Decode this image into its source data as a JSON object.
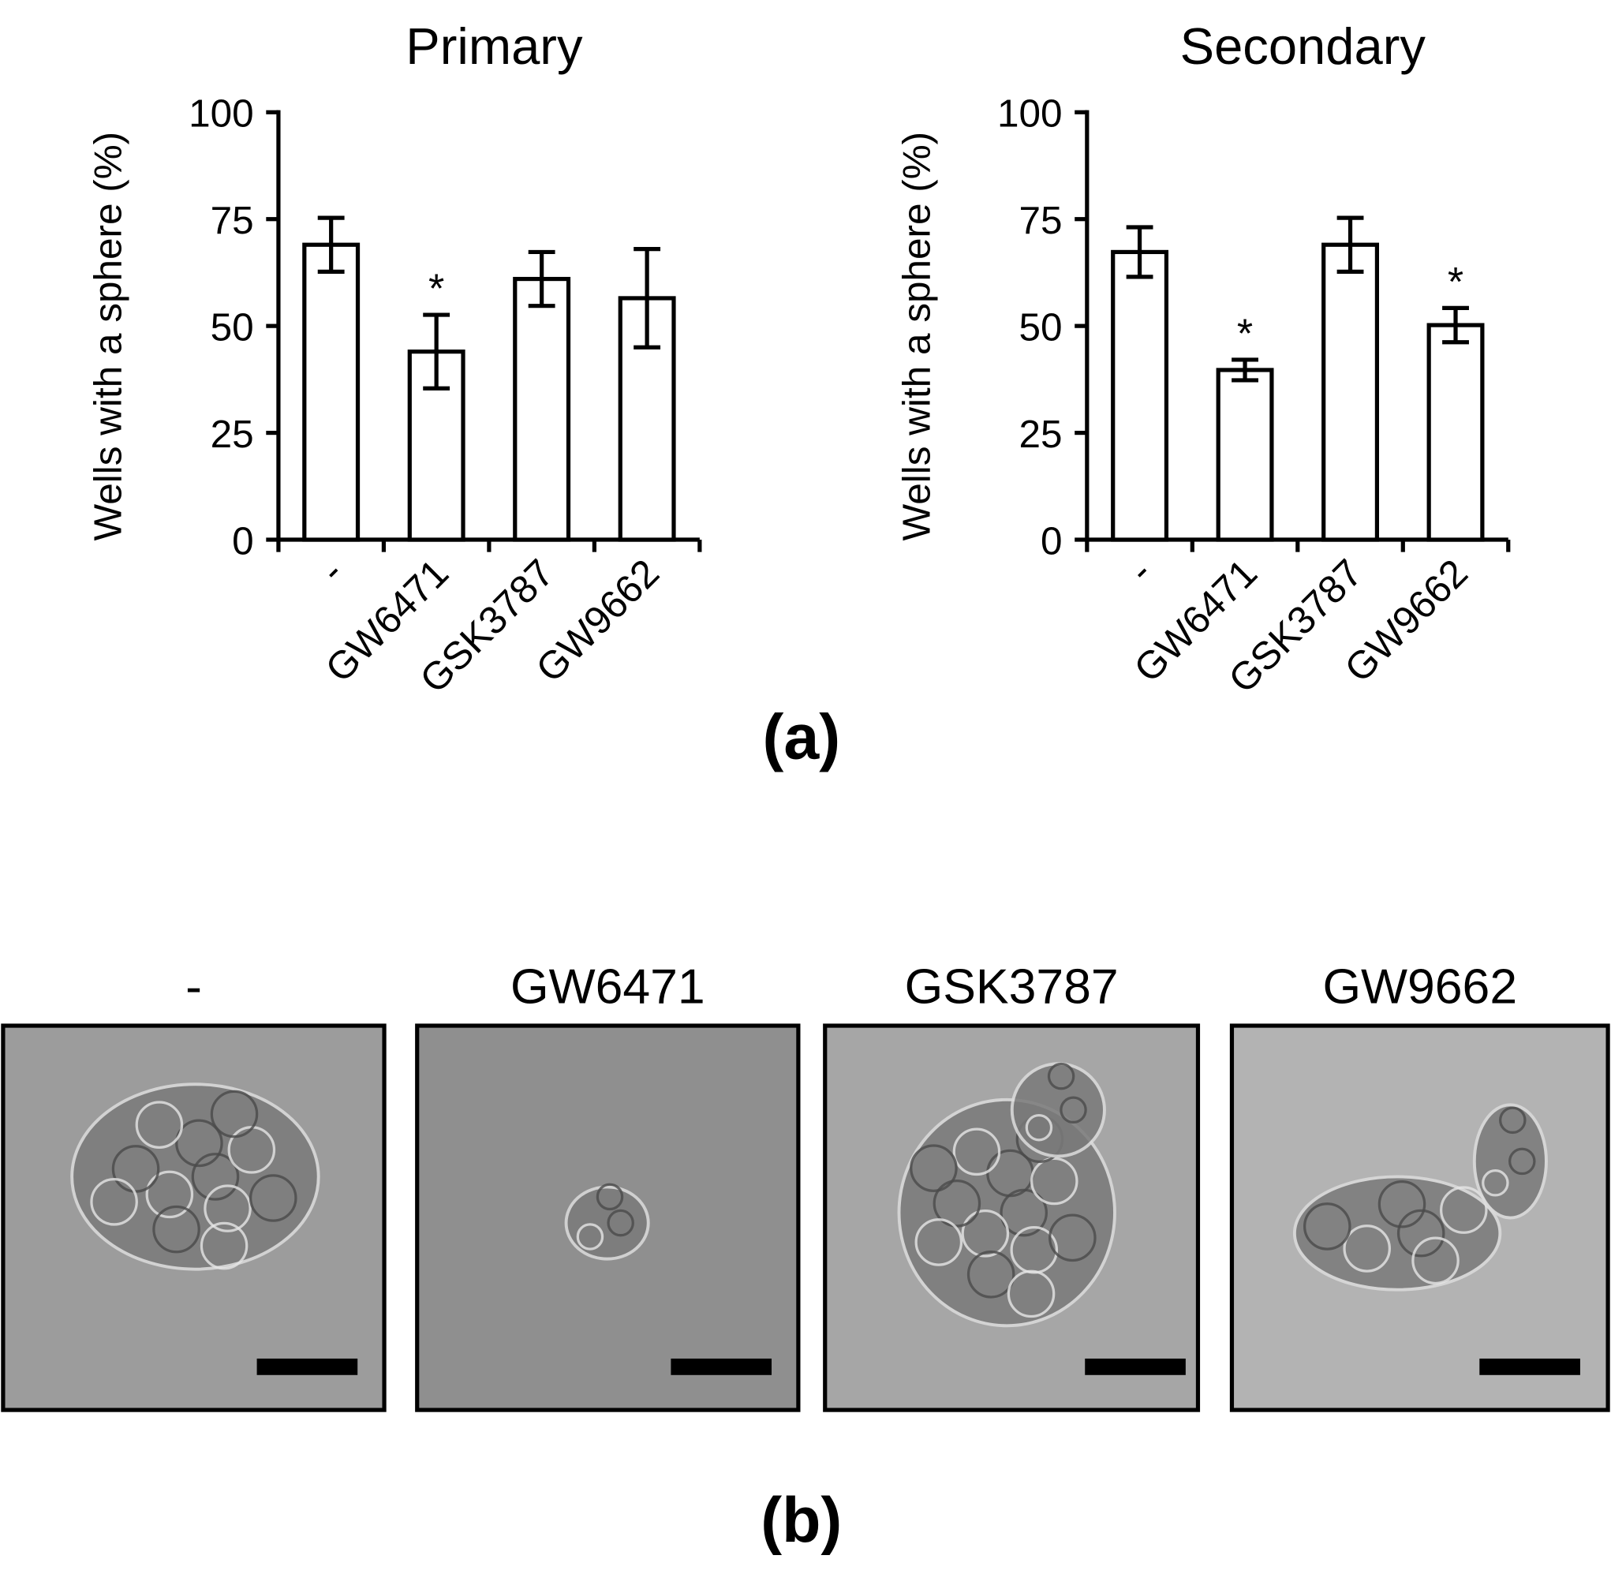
{
  "chart_data": [
    {
      "type": "bar",
      "title": "Primary",
      "y_label": "Wells with a sphere (%)",
      "categories": [
        "-",
        "GW6471",
        "GSK3787",
        "GW9662"
      ],
      "values": [
        69,
        44,
        61,
        56.5
      ],
      "errors": [
        6.3,
        8.6,
        6.3,
        11.5
      ],
      "color": "#ffffff",
      "ylim": [
        0,
        100
      ],
      "yticks": [
        0,
        25,
        50,
        75,
        100
      ],
      "annotations": [
        {
          "category": "GW6471",
          "text": "*"
        }
      ]
    },
    {
      "type": "bar",
      "title": "Secondary",
      "y_label": "Wells with a sphere (%)",
      "categories": [
        "-",
        "GW6471",
        "GSK3787",
        "GW9662"
      ],
      "values": [
        67.3,
        39.7,
        69,
        50.2
      ],
      "errors": [
        5.8,
        2.4,
        6.3,
        4
      ],
      "color": "#ffffff",
      "ylim": [
        0,
        100
      ],
      "yticks": [
        0,
        25,
        50,
        75,
        100
      ],
      "annotations": [
        {
          "category": "GW6471",
          "text": "*"
        },
        {
          "category": "GW9662",
          "text": "*"
        }
      ]
    }
  ],
  "figure": {
    "label_a": "(a)",
    "label_b": "(b)",
    "panels": [
      {
        "label": "-"
      },
      {
        "label": "GW6471"
      },
      {
        "label": "GSK3787"
      },
      {
        "label": "GW9662"
      }
    ]
  }
}
